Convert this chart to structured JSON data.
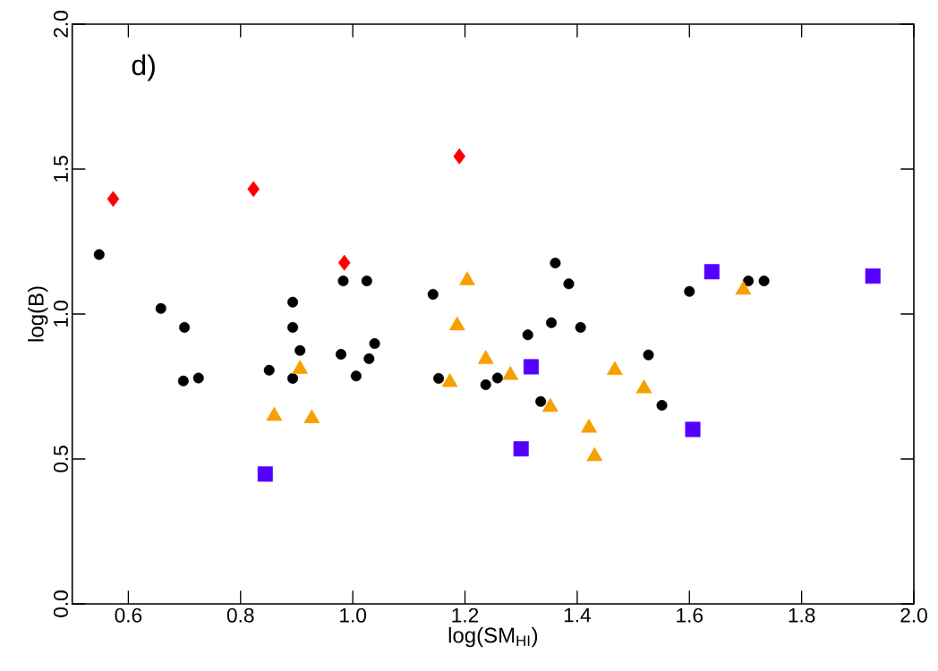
{
  "chart_data": {
    "type": "scatter",
    "xlabel": "log(SM$_{HI}$)",
    "ylabel": "log(B)",
    "annotations": [
      "d)"
    ],
    "xlim": [
      0.5,
      2.0
    ],
    "ylim": [
      0.0,
      2.0
    ],
    "xticks": [
      {
        "value": 0.6,
        "label": "0.6"
      },
      {
        "value": 0.8,
        "label": "0.8"
      },
      {
        "value": 1.0,
        "label": "1.0"
      },
      {
        "value": 1.2,
        "label": "1.2"
      },
      {
        "value": 1.4,
        "label": "1.4"
      },
      {
        "value": 1.6,
        "label": "1.6"
      },
      {
        "value": 1.8,
        "label": "1.8"
      },
      {
        "value": 2.0,
        "label": "2.0"
      }
    ],
    "yticks": [
      {
        "value": 0.0,
        "label": "0.0"
      },
      {
        "value": 0.5,
        "label": "0.5"
      },
      {
        "value": 1.0,
        "label": "1.0"
      },
      {
        "value": 1.5,
        "label": "1.5"
      },
      {
        "value": 2.0,
        "label": "2.0"
      }
    ],
    "series": [
      {
        "color": "#000000",
        "marker": "circle",
        "x": [
          0.548,
          0.658,
          0.7,
          0.698,
          0.725,
          0.851,
          0.893,
          0.893,
          0.906,
          0.893,
          0.979,
          0.983,
          1.025,
          1.029,
          1.039,
          1.006,
          1.143,
          1.153,
          1.237,
          1.258,
          1.312,
          1.335,
          1.354,
          1.385,
          1.361,
          1.406,
          1.527,
          1.551,
          1.6,
          1.705,
          1.733
        ],
        "values": [
          1.205,
          1.019,
          0.954,
          0.769,
          0.779,
          0.806,
          1.041,
          0.954,
          0.874,
          0.778,
          0.861,
          1.114,
          1.114,
          0.846,
          0.898,
          0.786,
          1.068,
          0.778,
          0.756,
          0.779,
          0.928,
          0.698,
          0.97,
          1.104,
          1.176,
          0.954,
          0.859,
          0.685,
          1.078,
          1.114,
          1.114
        ]
      },
      {
        "color": "#ff0000",
        "marker": "diamond",
        "x": [
          0.573,
          0.823,
          1.19,
          0.985
        ],
        "values": [
          1.397,
          1.431,
          1.544,
          1.177
        ]
      },
      {
        "color": "#f5a000",
        "marker": "triangle",
        "x": [
          0.906,
          0.86,
          0.927,
          1.173,
          1.186,
          1.204,
          1.237,
          1.281,
          1.352,
          1.421,
          1.431,
          1.467,
          1.519,
          1.696
        ],
        "values": [
          0.81,
          0.648,
          0.64,
          0.765,
          0.96,
          1.116,
          0.844,
          0.789,
          0.679,
          0.607,
          0.509,
          0.806,
          0.743,
          1.083
        ]
      },
      {
        "color": "#5500ff",
        "marker": "square",
        "x": [
          0.844,
          1.3,
          1.318,
          1.606,
          1.64,
          1.927
        ],
        "values": [
          0.448,
          0.535,
          0.818,
          0.602,
          1.146,
          1.131
        ]
      }
    ]
  }
}
